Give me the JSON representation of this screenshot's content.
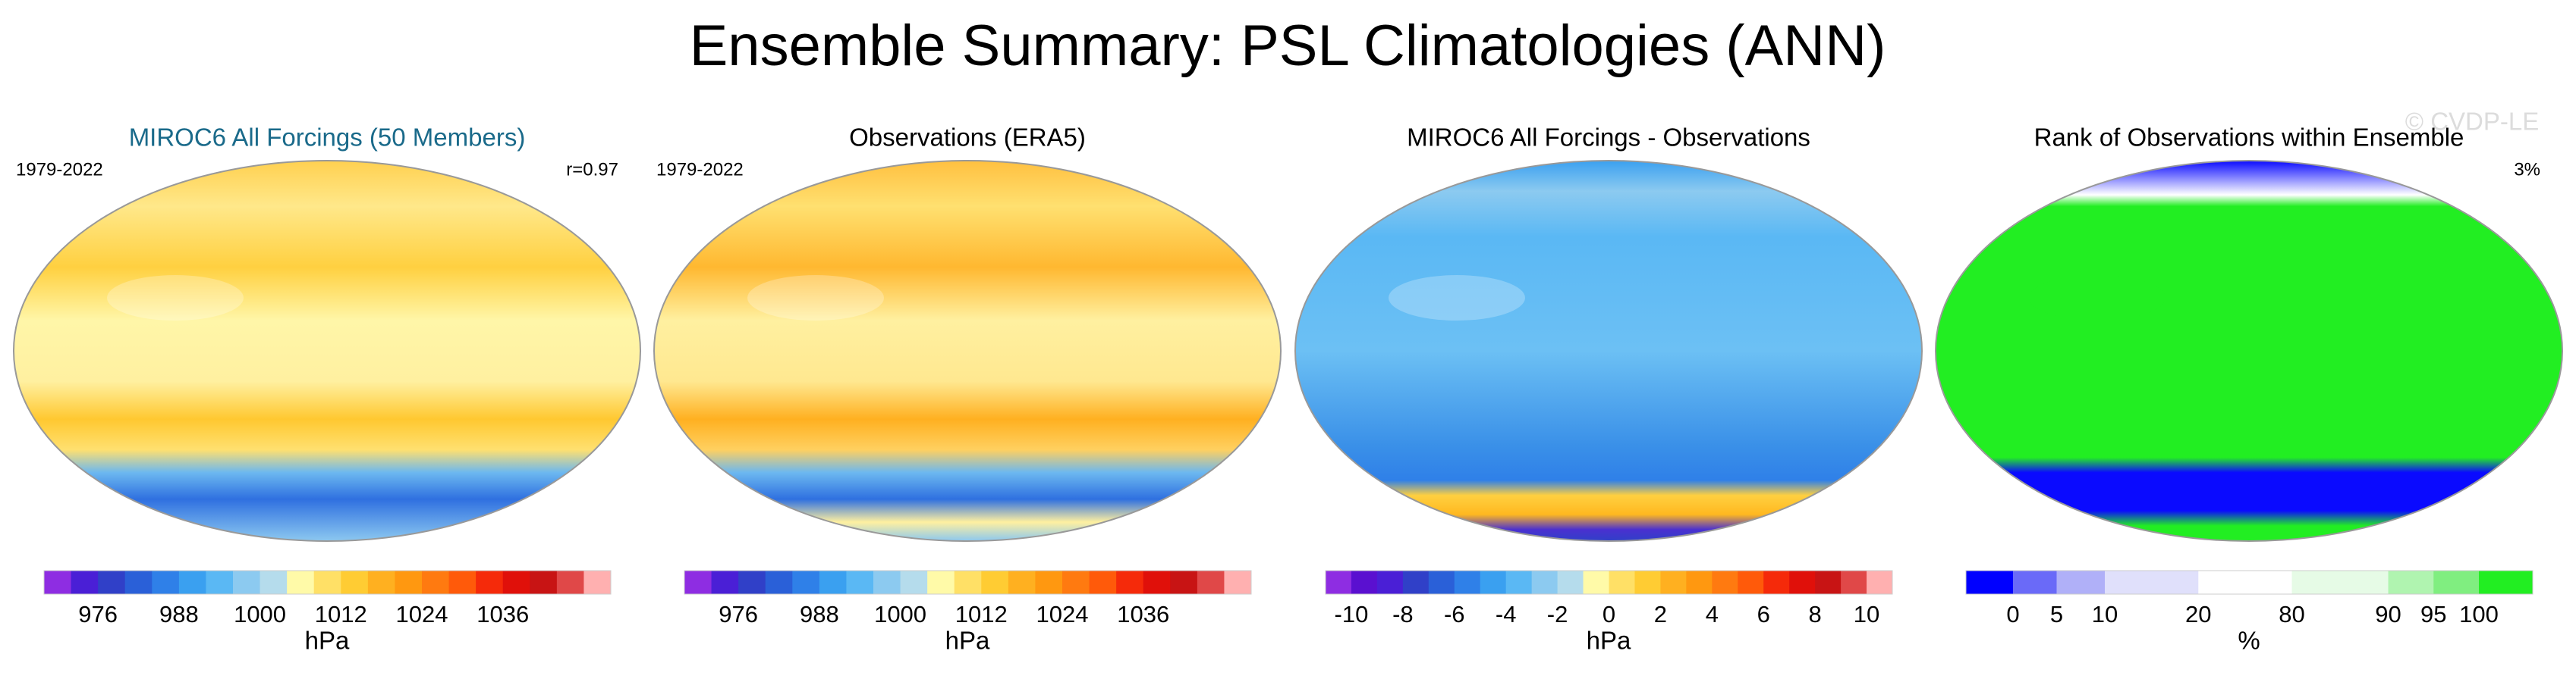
{
  "title": "Ensemble Summary: PSL Climatologies (ANN)",
  "watermark": "© CVDP-LE",
  "panels": [
    {
      "title": "MIROC6 All Forcings (50 Members)",
      "title_color": "#1a6a8a",
      "left_label": "1979-2022",
      "right_label": "r=0.97",
      "colorbar": {
        "unit": "hPa",
        "ticks": [
          976,
          988,
          1000,
          1012,
          1024,
          1036
        ],
        "colors": [
          "#8e2de2",
          "#4a1fd6",
          "#3040c8",
          "#2a60d8",
          "#2f80e8",
          "#3aa0f0",
          "#5ab8f4",
          "#8ccaf0",
          "#b5dcec",
          "#fffaa8",
          "#ffe066",
          "#ffcc33",
          "#ffb020",
          "#ff9810",
          "#ff7a10",
          "#ff5a0a",
          "#f52a0a",
          "#e0100a",
          "#c81414",
          "#e04848",
          "#ffb0b0"
        ]
      }
    },
    {
      "title": "Observations (ERA5)",
      "title_color": "#000000",
      "left_label": "1979-2022",
      "colorbar": {
        "unit": "hPa",
        "ticks": [
          976,
          988,
          1000,
          1012,
          1024,
          1036
        ],
        "colors": [
          "#8e2de2",
          "#4a1fd6",
          "#3040c8",
          "#2a60d8",
          "#2f80e8",
          "#3aa0f0",
          "#5ab8f4",
          "#8ccaf0",
          "#b5dcec",
          "#fffaa8",
          "#ffe066",
          "#ffcc33",
          "#ffb020",
          "#ff9810",
          "#ff7a10",
          "#ff5a0a",
          "#f52a0a",
          "#e0100a",
          "#c81414",
          "#e04848",
          "#ffb0b0"
        ]
      }
    },
    {
      "title": "MIROC6 All Forcings - Observations",
      "title_color": "#000000",
      "colorbar": {
        "unit": "hPa",
        "ticks": [
          -10,
          -8,
          -6,
          -4,
          -2,
          0,
          2,
          4,
          6,
          8,
          10
        ],
        "colors": [
          "#8e2de2",
          "#5a10d0",
          "#4a1fd6",
          "#3040c8",
          "#2a60d8",
          "#2f80e8",
          "#3aa0f0",
          "#5ab8f4",
          "#8ccaf0",
          "#b5dcec",
          "#fffaa8",
          "#ffe066",
          "#ffcc33",
          "#ffb020",
          "#ff9810",
          "#ff7a10",
          "#ff5a0a",
          "#f52a0a",
          "#e0100a",
          "#c81414",
          "#e04848",
          "#ffb0b0"
        ]
      }
    },
    {
      "title": "Rank of Observations within Ensemble",
      "title_color": "#000000",
      "right_label": "3%",
      "colorbar": {
        "unit": "%",
        "ticks": [
          0,
          5,
          10,
          20,
          80,
          90,
          95,
          100
        ],
        "colors": [
          "#0000ff",
          "#6a6af8",
          "#b0b0f8",
          "#e0e0fb",
          "#ffffff",
          "#e6fbe6",
          "#b0f4b0",
          "#80ee80",
          "#22ee22"
        ]
      }
    }
  ]
}
